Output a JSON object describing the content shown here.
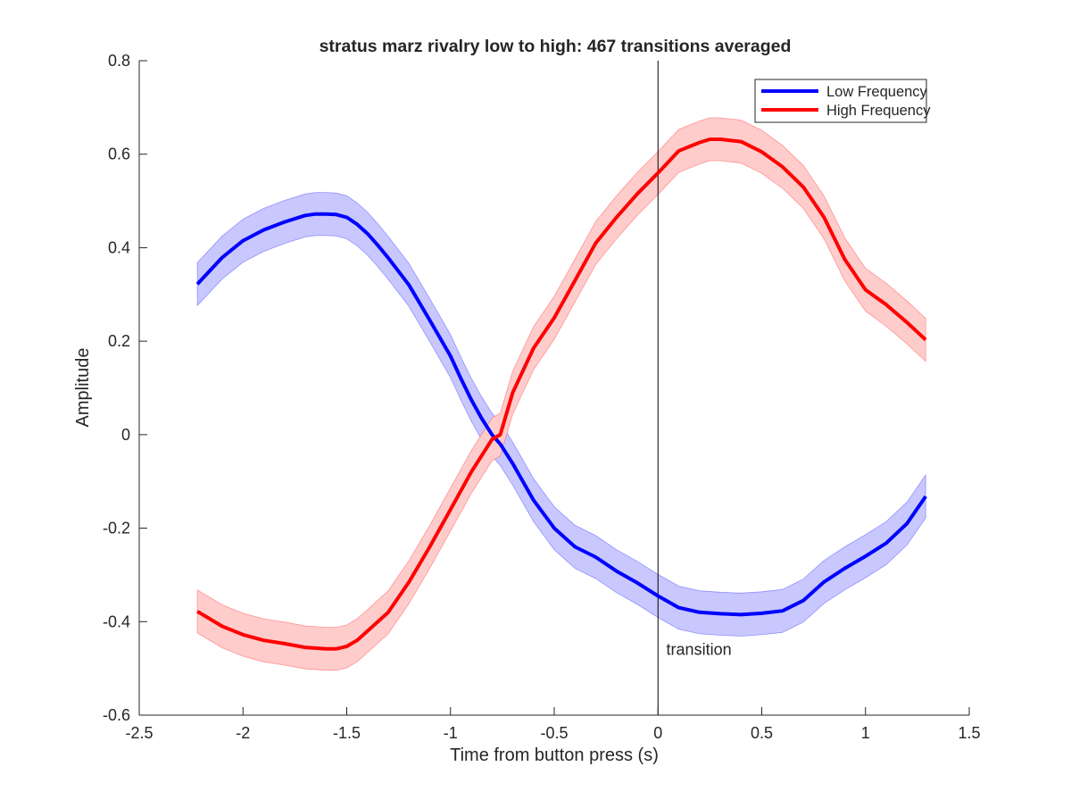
{
  "chart_data": {
    "type": "line",
    "title": "stratus marz rivalry low to high: 467 transitions averaged",
    "xlabel": "Time from button press (s)",
    "ylabel": "Amplitude",
    "xlim": [
      -2.5,
      1.5
    ],
    "ylim": [
      -0.6,
      0.8
    ],
    "xticks": [
      -2.5,
      -2,
      -1.5,
      -1,
      -0.5,
      0,
      0.5,
      1,
      1.5
    ],
    "xtick_labels": [
      "-2.5",
      "-2",
      "-1.5",
      "-1",
      "-0.5",
      "0",
      "0.5",
      "1",
      "1.5"
    ],
    "yticks": [
      -0.6,
      -0.4,
      -0.2,
      0,
      0.2,
      0.4,
      0.6,
      0.8
    ],
    "ytick_labels": [
      "-0.6",
      "-0.4",
      "-0.2",
      "0",
      "0.2",
      "0.4",
      "0.6",
      "0.8"
    ],
    "grid": false,
    "legend_position": "top-right",
    "series": [
      {
        "name": "Low Frequency",
        "color": "#0000ff",
        "band_color": "#c8c8ff",
        "band_halfwidth": 0.046,
        "x": [
          -2.22,
          -2.1,
          -2.0,
          -1.9,
          -1.8,
          -1.7,
          -1.65,
          -1.6,
          -1.55,
          -1.5,
          -1.45,
          -1.4,
          -1.35,
          -1.3,
          -1.2,
          -1.1,
          -1.0,
          -0.95,
          -0.9,
          -0.85,
          -0.8,
          -0.76,
          -0.7,
          -0.6,
          -0.5,
          -0.4,
          -0.3,
          -0.2,
          -0.1,
          0.0,
          0.1,
          0.2,
          0.3,
          0.4,
          0.5,
          0.6,
          0.7,
          0.8,
          0.9,
          1.0,
          1.1,
          1.2,
          1.29
        ],
        "y": [
          0.322,
          0.379,
          0.415,
          0.438,
          0.455,
          0.469,
          0.472,
          0.472,
          0.471,
          0.465,
          0.45,
          0.43,
          0.405,
          0.378,
          0.32,
          0.245,
          0.168,
          0.12,
          0.075,
          0.035,
          0.0,
          -0.02,
          -0.062,
          -0.14,
          -0.2,
          -0.24,
          -0.262,
          -0.292,
          -0.317,
          -0.345,
          -0.37,
          -0.38,
          -0.383,
          -0.385,
          -0.382,
          -0.377,
          -0.355,
          -0.315,
          -0.286,
          -0.26,
          -0.232,
          -0.19,
          -0.132
        ]
      },
      {
        "name": "High Frequency",
        "color": "#ff0000",
        "band_color": "#ffcccc",
        "band_halfwidth": 0.046,
        "x": [
          -2.22,
          -2.1,
          -2.0,
          -1.9,
          -1.8,
          -1.7,
          -1.6,
          -1.55,
          -1.5,
          -1.45,
          -1.4,
          -1.3,
          -1.2,
          -1.1,
          -1.0,
          -0.9,
          -0.8,
          -0.76,
          -0.7,
          -0.6,
          -0.5,
          -0.4,
          -0.3,
          -0.2,
          -0.1,
          0.0,
          0.1,
          0.2,
          0.25,
          0.3,
          0.4,
          0.5,
          0.6,
          0.7,
          0.8,
          0.9,
          1.0,
          1.1,
          1.2,
          1.29
        ],
        "y": [
          -0.378,
          -0.41,
          -0.428,
          -0.44,
          -0.447,
          -0.455,
          -0.458,
          -0.458,
          -0.453,
          -0.44,
          -0.42,
          -0.38,
          -0.315,
          -0.24,
          -0.16,
          -0.08,
          -0.01,
          0.0,
          0.09,
          0.185,
          0.25,
          0.33,
          0.41,
          0.465,
          0.515,
          0.56,
          0.607,
          0.625,
          0.632,
          0.632,
          0.627,
          0.605,
          0.573,
          0.53,
          0.465,
          0.375,
          0.31,
          0.278,
          0.24,
          0.203
        ]
      }
    ],
    "annotations": [
      {
        "text": "transition",
        "x": 0.04,
        "y": -0.46,
        "vline_x": 0
      }
    ]
  }
}
